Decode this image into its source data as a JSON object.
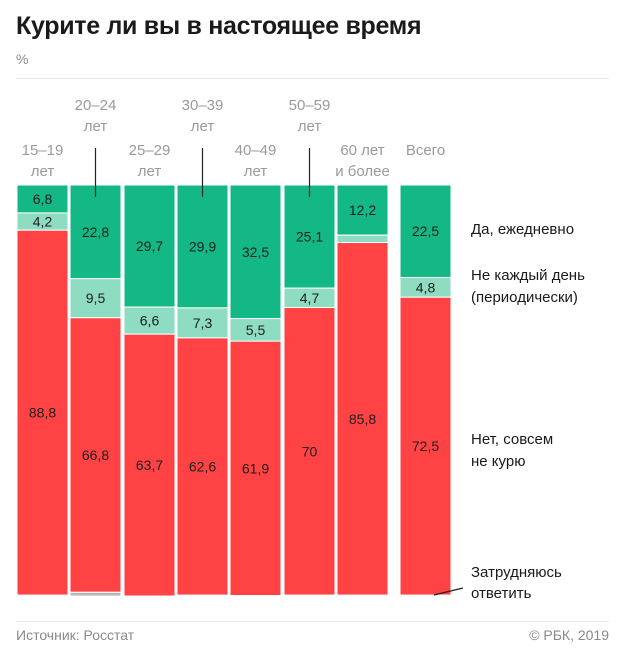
{
  "header": {
    "title": "Курите ли вы в настоящее время",
    "unit": "%"
  },
  "footer": {
    "source": "Источник: Росстат",
    "copyright": "© РБК, 2019"
  },
  "colors": {
    "daily": "#13b884",
    "occasional": "#8edcc2",
    "no": "#ff4345",
    "dontknow": "#b5b5b5",
    "category_text": "#9a9a9a",
    "value_text": "#1e1e1e"
  },
  "chart_data": {
    "type": "bar",
    "stacked": true,
    "title": "Курите ли вы в настоящее время",
    "ylabel": "%",
    "ylim": [
      0,
      100
    ],
    "categories": [
      [
        "15–19",
        "лет"
      ],
      [
        "20–24",
        "лет"
      ],
      [
        "25–29",
        "лет"
      ],
      [
        "30–39",
        "лет"
      ],
      [
        "40–49",
        "лет"
      ],
      [
        "50–59",
        "лет"
      ],
      [
        "60 лет",
        "и более"
      ],
      [
        "Всего"
      ]
    ],
    "category_label_row": [
      "low",
      "high",
      "low",
      "high",
      "low",
      "high",
      "low",
      "low"
    ],
    "series": [
      {
        "name": "Да, ежедневно",
        "key": "daily",
        "values": [
          6.8,
          22.8,
          29.7,
          29.9,
          32.5,
          25.1,
          12.2,
          22.5
        ],
        "labels": [
          "6,8",
          "22,8",
          "29,7",
          "29,9",
          "32,5",
          "25,1",
          "12,2",
          "22,5"
        ]
      },
      {
        "name": "Не каждый день (периодически)",
        "key": "occasional",
        "values": [
          4.2,
          9.5,
          6.6,
          7.3,
          5.5,
          4.7,
          1.8,
          4.8
        ],
        "labels": [
          "4,2",
          "9,5",
          "6,6",
          "7,3",
          "5,5",
          "4,7",
          "",
          "4,8"
        ]
      },
      {
        "name": "Нет, совсем не курю",
        "key": "no",
        "values": [
          88.8,
          66.8,
          63.7,
          62.6,
          61.9,
          70,
          85.8,
          72.5
        ],
        "labels": [
          "88,8",
          "66,8",
          "63,7",
          "62,6",
          "61,9",
          "70",
          "85,8",
          "72,5"
        ]
      },
      {
        "name": "Затрудняюсь ответить",
        "key": "dontknow",
        "values": [
          0.2,
          0.9,
          0,
          0.2,
          0.1,
          0.2,
          0.2,
          0.2
        ],
        "labels": [
          "",
          "",
          "",
          "",
          "",
          "",
          "",
          ""
        ]
      }
    ],
    "legend": [
      {
        "key": "daily",
        "lines": [
          "Да, ежедневно"
        ]
      },
      {
        "key": "occasional",
        "lines": [
          "Не каждый день",
          "(периодически)"
        ]
      },
      {
        "key": "no",
        "lines": [
          "Нет, совсем",
          "не курю"
        ]
      },
      {
        "key": "dontknow",
        "lines": [
          "Затрудняюсь",
          "ответить"
        ]
      }
    ],
    "legend_position": "right"
  }
}
